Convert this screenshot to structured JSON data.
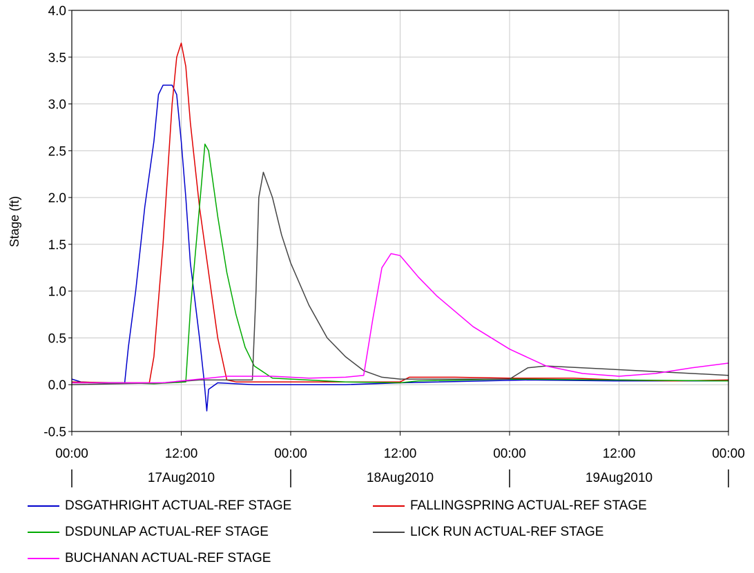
{
  "chart_data": {
    "type": "line",
    "ylabel": "Stage (ft)",
    "xlabel": "",
    "ylim": [
      -0.5,
      4.0
    ],
    "yticks": [
      "-0.5",
      "0.0",
      "0.5",
      "1.0",
      "1.5",
      "2.0",
      "2.5",
      "3.0",
      "3.5",
      "4.0"
    ],
    "xlim_hours": [
      0,
      72
    ],
    "x_time_ticks": [
      "00:00",
      "12:00",
      "00:00",
      "12:00",
      "00:00",
      "12:00",
      "00:00"
    ],
    "x_date_labels": [
      "17Aug2010",
      "18Aug2010",
      "19Aug2010"
    ],
    "grid": true,
    "legend_position": "bottom",
    "series": [
      {
        "name": "DSGATHRIGHT ACTUAL-REF STAGE",
        "color": "#0000cc",
        "points": [
          [
            0,
            0.06
          ],
          [
            1,
            0.03
          ],
          [
            3,
            0.02
          ],
          [
            5.8,
            0.02
          ],
          [
            6.2,
            0.4
          ],
          [
            7,
            1.0
          ],
          [
            8,
            1.9
          ],
          [
            9,
            2.6
          ],
          [
            9.5,
            3.1
          ],
          [
            10,
            3.2
          ],
          [
            11,
            3.2
          ],
          [
            11.5,
            3.1
          ],
          [
            12,
            2.6
          ],
          [
            12.5,
            2.0
          ],
          [
            13,
            1.3
          ],
          [
            14,
            0.5
          ],
          [
            14.5,
            0.05
          ],
          [
            14.8,
            -0.28
          ],
          [
            15,
            -0.05
          ],
          [
            16,
            0.02
          ],
          [
            20,
            0.0
          ],
          [
            30,
            0.0
          ],
          [
            36,
            0.02
          ],
          [
            50,
            0.05
          ],
          [
            60,
            0.04
          ],
          [
            72,
            0.04
          ]
        ]
      },
      {
        "name": "FALLINGSPRING ACTUAL-REF STAGE",
        "color": "#e00000",
        "points": [
          [
            0,
            0.03
          ],
          [
            5,
            0.02
          ],
          [
            8.5,
            0.02
          ],
          [
            9,
            0.3
          ],
          [
            10,
            1.5
          ],
          [
            11,
            3.0
          ],
          [
            11.5,
            3.5
          ],
          [
            12,
            3.65
          ],
          [
            12.5,
            3.4
          ],
          [
            13,
            2.8
          ],
          [
            14,
            1.9
          ],
          [
            15,
            1.2
          ],
          [
            16,
            0.5
          ],
          [
            17,
            0.05
          ],
          [
            18,
            0.03
          ],
          [
            30,
            0.03
          ],
          [
            36,
            0.03
          ],
          [
            37,
            0.08
          ],
          [
            42,
            0.08
          ],
          [
            48,
            0.07
          ],
          [
            55,
            0.07
          ],
          [
            60,
            0.05
          ],
          [
            66,
            0.04
          ],
          [
            72,
            0.05
          ]
        ]
      },
      {
        "name": "DSDUNLAP ACTUAL-REF STAGE",
        "color": "#00aa00",
        "points": [
          [
            0,
            0.02
          ],
          [
            6,
            0.02
          ],
          [
            9,
            0.01
          ],
          [
            12.5,
            0.03
          ],
          [
            13,
            0.8
          ],
          [
            14,
            1.9
          ],
          [
            14.6,
            2.57
          ],
          [
            15,
            2.5
          ],
          [
            16,
            1.8
          ],
          [
            17,
            1.2
          ],
          [
            18,
            0.75
          ],
          [
            19,
            0.4
          ],
          [
            20,
            0.2
          ],
          [
            22,
            0.07
          ],
          [
            30,
            0.03
          ],
          [
            36,
            0.02
          ],
          [
            38,
            0.04
          ],
          [
            48,
            0.06
          ],
          [
            60,
            0.05
          ],
          [
            72,
            0.04
          ]
        ]
      },
      {
        "name": "LICK RUN ACTUAL-REF STAGE",
        "color": "#444444",
        "points": [
          [
            0,
            0.0
          ],
          [
            10,
            0.02
          ],
          [
            14,
            0.05
          ],
          [
            18,
            0.05
          ],
          [
            19.8,
            0.05
          ],
          [
            20.2,
            1.0
          ],
          [
            20.5,
            2.0
          ],
          [
            21,
            2.27
          ],
          [
            22,
            2.0
          ],
          [
            23,
            1.6
          ],
          [
            24,
            1.3
          ],
          [
            26,
            0.85
          ],
          [
            28,
            0.5
          ],
          [
            30,
            0.3
          ],
          [
            32,
            0.15
          ],
          [
            34,
            0.08
          ],
          [
            36,
            0.06
          ],
          [
            48,
            0.06
          ],
          [
            50,
            0.18
          ],
          [
            52,
            0.2
          ],
          [
            60,
            0.16
          ],
          [
            72,
            0.1
          ]
        ]
      },
      {
        "name": "BUCHANAN ACTUAL-REF STAGE",
        "color": "#ff00ff",
        "points": [
          [
            0,
            0.02
          ],
          [
            10,
            0.02
          ],
          [
            14,
            0.06
          ],
          [
            17,
            0.09
          ],
          [
            22,
            0.09
          ],
          [
            26,
            0.07
          ],
          [
            30,
            0.08
          ],
          [
            32,
            0.1
          ],
          [
            33,
            0.7
          ],
          [
            34,
            1.25
          ],
          [
            35,
            1.4
          ],
          [
            36,
            1.38
          ],
          [
            38,
            1.15
          ],
          [
            40,
            0.95
          ],
          [
            44,
            0.62
          ],
          [
            48,
            0.38
          ],
          [
            52,
            0.2
          ],
          [
            56,
            0.12
          ],
          [
            60,
            0.09
          ],
          [
            64,
            0.12
          ],
          [
            68,
            0.18
          ],
          [
            72,
            0.23
          ]
        ]
      }
    ]
  }
}
